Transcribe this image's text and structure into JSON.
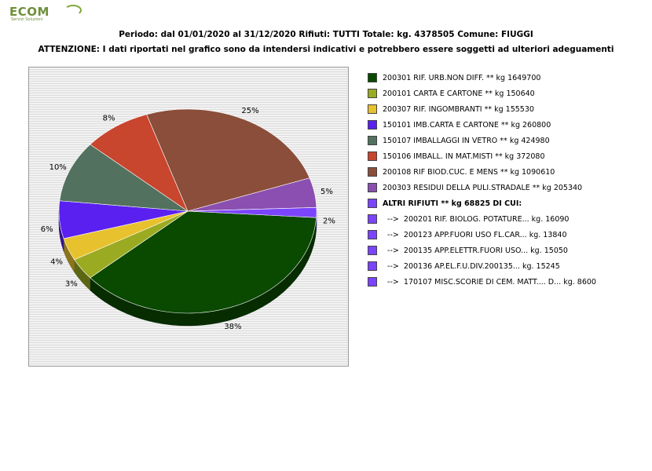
{
  "logo": {
    "text": "ECOM",
    "tagline": "Servizi Soluzioni"
  },
  "header": {
    "line1": "Periodo: dal 01/01/2020 al 31/12/2020 Rifiuti: TUTTI   Totale: kg. 4378505    Comune: FIUGGI",
    "line2": "ATTENZIONE: I dati riportati nel grafico sono da intendersi indicativi e potrebbero essere soggetti ad ulteriori adeguamenti"
  },
  "chart_data": {
    "type": "pie",
    "style": "3d",
    "slices": [
      {
        "label": "200301 RIF. URB.NON DIFF. ** kg 1649700",
        "value": 1649700,
        "pct_label": "38%",
        "color": "#0a4a00"
      },
      {
        "label": "200101 CARTA E CARTONE ** kg 150640",
        "value": 150640,
        "pct_label": "3%",
        "color": "#9aab22"
      },
      {
        "label": "200307 RIF. INGOMBRANTI ** kg 155530",
        "value": 155530,
        "pct_label": "4%",
        "color": "#e8c22e"
      },
      {
        "label": "150101 IMB.CARTA E CARTONE ** kg 260800",
        "value": 260800,
        "pct_label": "6%",
        "color": "#5a20f0"
      },
      {
        "label": "150107 IMBALLAGGI IN VETRO ** kg 424980",
        "value": 424980,
        "pct_label": "10%",
        "color": "#52715e"
      },
      {
        "label": "150106 IMBALL. IN MAT.MISTI ** kg 372080",
        "value": 372080,
        "pct_label": "8%",
        "color": "#c8452e"
      },
      {
        "label": "200108 RIF BIOD.CUC. E MENS ** kg 1090610",
        "value": 1090610,
        "pct_label": "25%",
        "color": "#8b4e3a"
      },
      {
        "label": "200303 RESIDUI DELLA PULI.STRADALE ** kg 205340",
        "value": 205340,
        "pct_label": "5%",
        "color": "#8a4fb0"
      },
      {
        "label": "ALTRI RIFIUTI ** kg 68825 DI CUI:",
        "value": 68825,
        "pct_label": "2%",
        "color": "#7b44ff"
      }
    ],
    "legend_extra": [
      {
        "label": "  -->  200201 RIF. BIOLOG. POTATURE... kg. 16090",
        "color": "#7b44ff"
      },
      {
        "label": "  -->  200123 APP.FUORI USO FL.CAR... kg. 13840",
        "color": "#7b44ff"
      },
      {
        "label": "  -->  200135 APP.ELETTR.FUORI USO... kg. 15050",
        "color": "#7b44ff"
      },
      {
        "label": "  -->  200136 AP.EL.F.U.DIV.200135... kg. 15245",
        "color": "#7b44ff"
      },
      {
        "label": "  -->  170107 MISC.SCORIE DI CEM. MATT.... D... kg. 8600",
        "color": "#7b44ff"
      }
    ],
    "legend_placement": "right"
  }
}
